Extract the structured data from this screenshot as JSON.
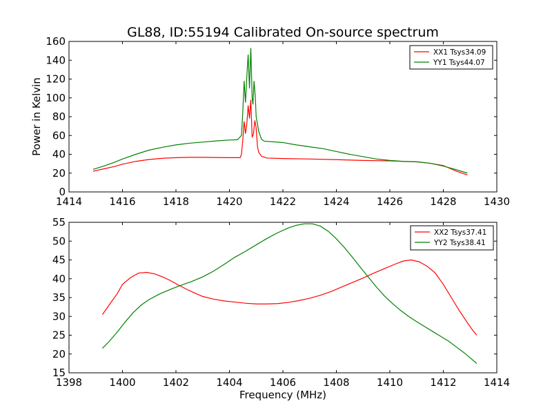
{
  "title": "GL88, ID:55194 Calibrated On-source spectrum",
  "chart_data": [
    {
      "type": "line",
      "title": "GL88, ID:55194 Calibrated On-source spectrum",
      "xlabel": "",
      "ylabel": "Power in Kelvin",
      "xlim": [
        1414,
        1430
      ],
      "ylim": [
        0,
        160
      ],
      "xticks": [
        1414,
        1416,
        1418,
        1420,
        1422,
        1424,
        1426,
        1428,
        1430
      ],
      "yticks": [
        0,
        20,
        40,
        60,
        80,
        100,
        120,
        140,
        160
      ],
      "grid": false,
      "legend_position": "top-right",
      "series": [
        {
          "name": "XX1 Tsys34.09",
          "color": "#ff0000",
          "points": [
            [
              1414.9,
              22
            ],
            [
              1415.3,
              24.5
            ],
            [
              1415.7,
              27
            ],
            [
              1416.0,
              29.5
            ],
            [
              1416.5,
              32.5
            ],
            [
              1417.0,
              34.5
            ],
            [
              1417.5,
              35.8
            ],
            [
              1418.0,
              36.4
            ],
            [
              1418.5,
              36.8
            ],
            [
              1419.0,
              36.8
            ],
            [
              1419.5,
              36.6
            ],
            [
              1420.0,
              36.4
            ],
            [
              1420.4,
              36.4
            ],
            [
              1420.45,
              40
            ],
            [
              1420.5,
              55
            ],
            [
              1420.55,
              75
            ],
            [
              1420.6,
              62
            ],
            [
              1420.65,
              72
            ],
            [
              1420.7,
              92
            ],
            [
              1420.75,
              78
            ],
            [
              1420.8,
              98
            ],
            [
              1420.85,
              58
            ],
            [
              1420.9,
              62
            ],
            [
              1420.95,
              76
            ],
            [
              1421.0,
              68
            ],
            [
              1421.05,
              48
            ],
            [
              1421.1,
              42
            ],
            [
              1421.2,
              38
            ],
            [
              1421.4,
              36
            ],
            [
              1422.0,
              35.5
            ],
            [
              1423.0,
              35
            ],
            [
              1424.0,
              34.3
            ],
            [
              1425.0,
              33.5
            ],
            [
              1426.0,
              33
            ],
            [
              1427.0,
              32
            ],
            [
              1427.5,
              30.5
            ],
            [
              1428.0,
              28
            ],
            [
              1428.5,
              22
            ],
            [
              1428.9,
              18
            ]
          ]
        },
        {
          "name": "YY1 Tsys44.07",
          "color": "#008000",
          "points": [
            [
              1414.9,
              24
            ],
            [
              1415.3,
              27.5
            ],
            [
              1415.7,
              31.5
            ],
            [
              1416.0,
              35
            ],
            [
              1416.5,
              40
            ],
            [
              1417.0,
              44.5
            ],
            [
              1417.5,
              47.5
            ],
            [
              1418.0,
              50
            ],
            [
              1418.5,
              51.8
            ],
            [
              1419.0,
              53
            ],
            [
              1419.5,
              54.2
            ],
            [
              1420.0,
              55.2
            ],
            [
              1420.3,
              55.5
            ],
            [
              1420.45,
              60
            ],
            [
              1420.5,
              85
            ],
            [
              1420.55,
              118
            ],
            [
              1420.6,
              95
            ],
            [
              1420.65,
              122
            ],
            [
              1420.7,
              146
            ],
            [
              1420.75,
              110
            ],
            [
              1420.8,
              153
            ],
            [
              1420.85,
              100
            ],
            [
              1420.88,
              93
            ],
            [
              1420.92,
              118
            ],
            [
              1420.97,
              100
            ],
            [
              1421.0,
              80
            ],
            [
              1421.1,
              64
            ],
            [
              1421.2,
              56
            ],
            [
              1421.3,
              54
            ],
            [
              1422.0,
              52.5
            ],
            [
              1422.5,
              50
            ],
            [
              1423.0,
              48
            ],
            [
              1423.5,
              46
            ],
            [
              1424.0,
              43
            ],
            [
              1424.5,
              40
            ],
            [
              1425.0,
              37.5
            ],
            [
              1425.5,
              35
            ],
            [
              1426.0,
              33.5
            ],
            [
              1426.5,
              32.5
            ],
            [
              1427.0,
              32
            ],
            [
              1427.5,
              30.5
            ],
            [
              1428.0,
              27.5
            ],
            [
              1428.5,
              23.5
            ],
            [
              1428.9,
              20
            ]
          ]
        }
      ]
    },
    {
      "type": "line",
      "title": "",
      "xlabel": "Frequency (MHz)",
      "ylabel": "",
      "xlim": [
        1398,
        1414
      ],
      "ylim": [
        15,
        55
      ],
      "xticks": [
        1398,
        1400,
        1402,
        1404,
        1406,
        1408,
        1410,
        1412,
        1414
      ],
      "yticks": [
        15,
        20,
        25,
        30,
        35,
        40,
        45,
        50,
        55
      ],
      "grid": false,
      "legend_position": "top-right",
      "series": [
        {
          "name": "XX2 Tsys37.41",
          "color": "#ff0000",
          "points": [
            [
              1399.25,
              30.5
            ],
            [
              1399.5,
              33
            ],
            [
              1399.8,
              36
            ],
            [
              1400.0,
              38.5
            ],
            [
              1400.3,
              40.3
            ],
            [
              1400.6,
              41.5
            ],
            [
              1400.9,
              41.7
            ],
            [
              1401.2,
              41.3
            ],
            [
              1401.5,
              40.5
            ],
            [
              1401.8,
              39.5
            ],
            [
              1402.1,
              38.3
            ],
            [
              1402.4,
              37.2
            ],
            [
              1402.7,
              36.2
            ],
            [
              1403.0,
              35.3
            ],
            [
              1403.4,
              34.6
            ],
            [
              1403.8,
              34.1
            ],
            [
              1404.2,
              33.8
            ],
            [
              1404.6,
              33.5
            ],
            [
              1405.0,
              33.3
            ],
            [
              1405.4,
              33.3
            ],
            [
              1405.8,
              33.4
            ],
            [
              1406.2,
              33.7
            ],
            [
              1406.6,
              34.2
            ],
            [
              1407.0,
              34.8
            ],
            [
              1407.4,
              35.6
            ],
            [
              1407.8,
              36.6
            ],
            [
              1408.2,
              37.8
            ],
            [
              1408.6,
              39
            ],
            [
              1409.0,
              40.2
            ],
            [
              1409.4,
              41.5
            ],
            [
              1409.8,
              42.7
            ],
            [
              1410.2,
              43.9
            ],
            [
              1410.5,
              44.7
            ],
            [
              1410.8,
              45
            ],
            [
              1411.1,
              44.5
            ],
            [
              1411.4,
              43.3
            ],
            [
              1411.7,
              41.5
            ],
            [
              1412.0,
              38.5
            ],
            [
              1412.3,
              35
            ],
            [
              1412.6,
              31.5
            ],
            [
              1412.9,
              28.3
            ],
            [
              1413.1,
              26.3
            ],
            [
              1413.25,
              25
            ]
          ]
        },
        {
          "name": "YY2 Tsys38.41",
          "color": "#008000",
          "points": [
            [
              1399.25,
              21.5
            ],
            [
              1399.5,
              23.3
            ],
            [
              1399.8,
              25.8
            ],
            [
              1400.1,
              28.5
            ],
            [
              1400.4,
              31
            ],
            [
              1400.7,
              33
            ],
            [
              1401.0,
              34.5
            ],
            [
              1401.4,
              36
            ],
            [
              1401.8,
              37.2
            ],
            [
              1402.2,
              38.3
            ],
            [
              1402.6,
              39.3
            ],
            [
              1403.0,
              40.5
            ],
            [
              1403.4,
              42
            ],
            [
              1403.8,
              43.8
            ],
            [
              1404.2,
              45.7
            ],
            [
              1404.6,
              47.3
            ],
            [
              1405.0,
              49
            ],
            [
              1405.4,
              50.7
            ],
            [
              1405.8,
              52.2
            ],
            [
              1406.2,
              53.5
            ],
            [
              1406.5,
              54.2
            ],
            [
              1406.8,
              54.6
            ],
            [
              1407.1,
              54.6
            ],
            [
              1407.4,
              54
            ],
            [
              1407.7,
              52.6
            ],
            [
              1408.0,
              50.6
            ],
            [
              1408.3,
              48.3
            ],
            [
              1408.6,
              45.7
            ],
            [
              1408.9,
              43
            ],
            [
              1409.2,
              40.4
            ],
            [
              1409.5,
              37.8
            ],
            [
              1409.8,
              35.4
            ],
            [
              1410.1,
              33.4
            ],
            [
              1410.4,
              31.6
            ],
            [
              1410.7,
              30
            ],
            [
              1411.0,
              28.6
            ],
            [
              1411.3,
              27.3
            ],
            [
              1411.6,
              26
            ],
            [
              1411.9,
              24.7
            ],
            [
              1412.2,
              23.4
            ],
            [
              1412.5,
              21.8
            ],
            [
              1412.8,
              20.2
            ],
            [
              1413.0,
              19
            ],
            [
              1413.25,
              17.5
            ]
          ]
        }
      ]
    }
  ]
}
